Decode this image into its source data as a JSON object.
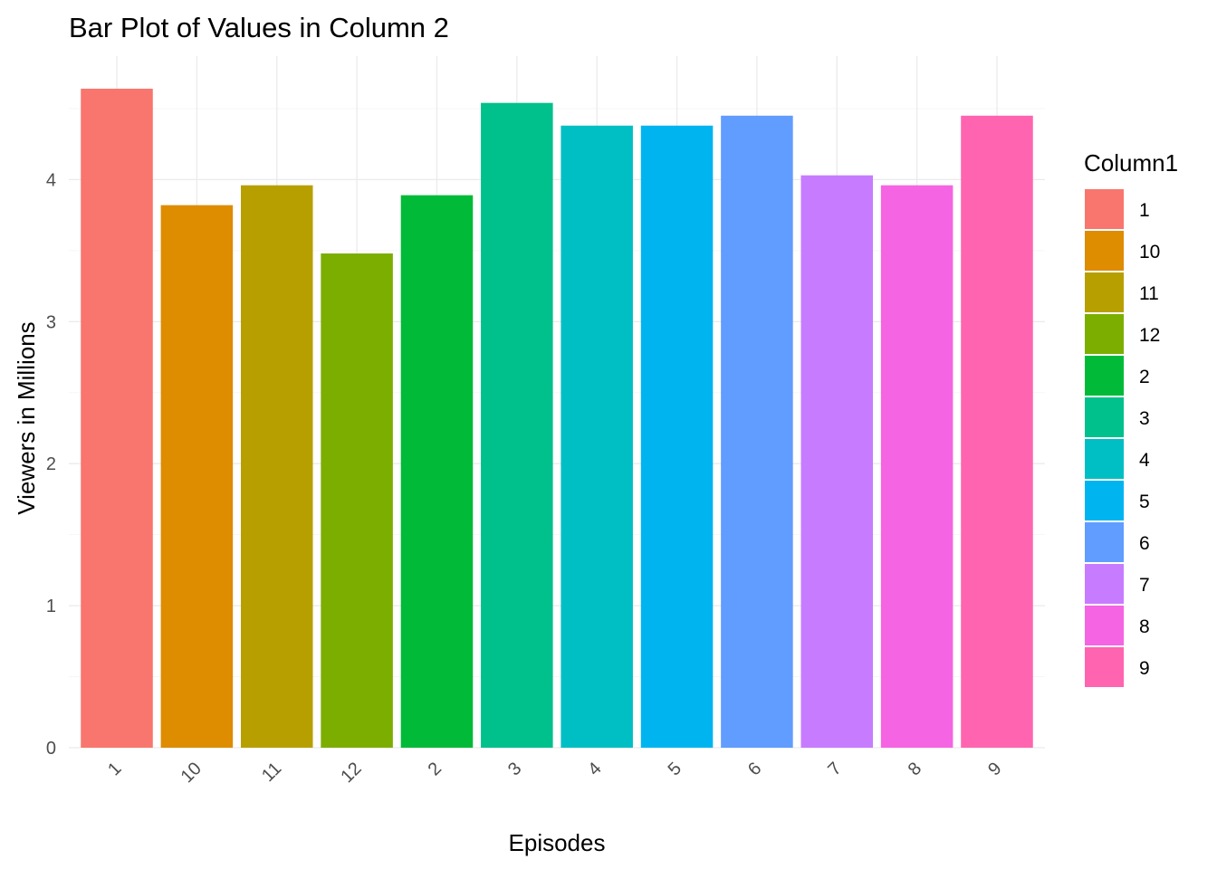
{
  "chart_data": {
    "type": "bar",
    "title": "Bar Plot of Values in Column 2",
    "xlabel": "Episodes",
    "ylabel": "Viewers in Millions",
    "categories": [
      "1",
      "10",
      "11",
      "12",
      "2",
      "3",
      "4",
      "5",
      "6",
      "7",
      "8",
      "9"
    ],
    "values": [
      4.64,
      3.82,
      3.96,
      3.48,
      3.89,
      4.54,
      4.38,
      4.38,
      4.45,
      4.03,
      3.96,
      4.45
    ],
    "colors": [
      "#F8766D",
      "#DE8C00",
      "#B79F00",
      "#7CAE00",
      "#00BA38",
      "#00C08B",
      "#00BFC4",
      "#00B4F0",
      "#619CFF",
      "#C77CFF",
      "#F564E3",
      "#FF64B0"
    ],
    "ylim": [
      0,
      4.64
    ],
    "yticks": [
      0,
      1,
      2,
      3,
      4
    ],
    "ytick_labels": [
      "0",
      "1",
      "2",
      "3",
      "4"
    ],
    "grid": true,
    "x_tick_rotation_deg": 45,
    "legend": {
      "title": "Column1",
      "position": "right",
      "entries": [
        "1",
        "10",
        "11",
        "12",
        "2",
        "3",
        "4",
        "5",
        "6",
        "7",
        "8",
        "9"
      ]
    }
  }
}
